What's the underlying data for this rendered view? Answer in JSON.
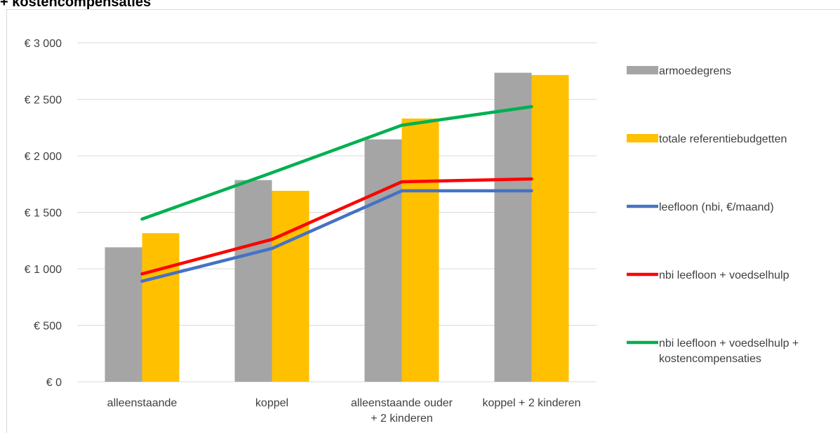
{
  "header": {
    "clipped_title": "+ kostencompensaties"
  },
  "chart_data": {
    "type": "bar",
    "title": "",
    "categories": [
      [
        "alleenstaande"
      ],
      [
        "koppel"
      ],
      [
        "alleenstaande ouder",
        "+ 2 kinderen"
      ],
      [
        "koppel + 2 kinderen"
      ]
    ],
    "ylim": [
      0,
      3000
    ],
    "yticks": [
      0,
      500,
      1000,
      1500,
      2000,
      2500,
      3000
    ],
    "ytick_labels": [
      "€ 0",
      "€ 500",
      "€ 1 000",
      "€ 1 500",
      "€ 2 000",
      "€ 2 500",
      "€ 3 000"
    ],
    "grid": true,
    "legend_position": "right",
    "bar_series": [
      {
        "name": "armoedegrens",
        "color": "#a5a5a5",
        "values": [
          1190,
          1785,
          2145,
          2735
        ]
      },
      {
        "name": "totale referentiebudgetten",
        "color": "#ffc000",
        "values": [
          1315,
          1690,
          2330,
          2715
        ]
      }
    ],
    "line_series": [
      {
        "name": "leefloon (nbi, €/maand)",
        "color": "#4472c4",
        "values": [
          890,
          1180,
          1690,
          1690
        ]
      },
      {
        "name": "nbi leefloon + voedselhulp",
        "color": "#ff0000",
        "values": [
          955,
          1260,
          1770,
          1795
        ]
      },
      {
        "name": [
          "nbi leefloon + voedselhulp +",
          "kostencompensaties"
        ],
        "color": "#00b050",
        "values": [
          1440,
          1850,
          2270,
          2435
        ]
      }
    ]
  }
}
